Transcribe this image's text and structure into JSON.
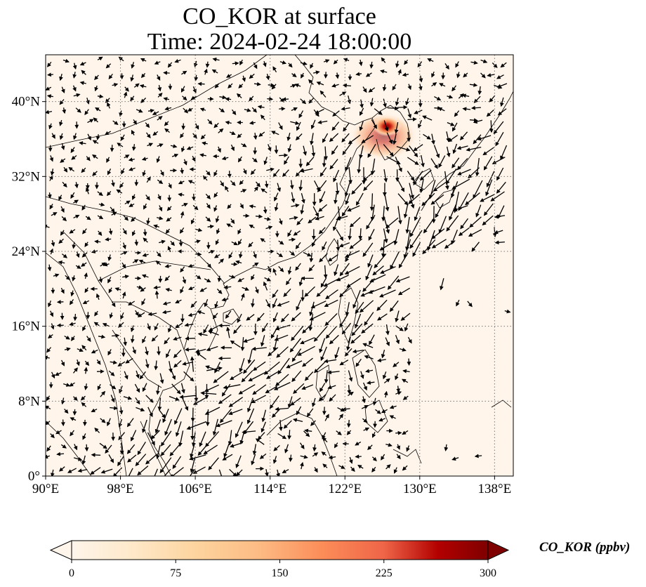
{
  "title": {
    "line1": "CO_KOR at surface",
    "line2": "Time: 2024-02-24 18:00:00"
  },
  "map": {
    "lon_range": [
      90,
      140
    ],
    "lat_range": [
      0,
      45
    ],
    "lon_ticks": [
      "90°E",
      "98°E",
      "106°E",
      "114°E",
      "122°E",
      "130°E",
      "138°E"
    ],
    "lon_tick_values": [
      90,
      98,
      106,
      114,
      122,
      130,
      138
    ],
    "lat_ticks": [
      "0°",
      "8°N",
      "16°N",
      "24°N",
      "32°N",
      "40°N"
    ],
    "lat_tick_values": [
      0,
      8,
      16,
      24,
      32,
      40
    ],
    "gridlines": "dotted",
    "background_color": "#fff5eb",
    "coastline_color": "#000000",
    "wind_vectors": "quiver",
    "hotspot": {
      "lon": 126.5,
      "lat": 37.5,
      "peak_ppbv": 300
    }
  },
  "colorbar": {
    "label": "CO_KOR (ppbv)",
    "ticks": [
      "0",
      "75",
      "150",
      "225",
      "300"
    ],
    "tick_values": [
      0,
      75,
      150,
      225,
      300
    ],
    "vmin": 0,
    "vmax": 300,
    "colormap": "OrRd",
    "extend": "both"
  }
}
